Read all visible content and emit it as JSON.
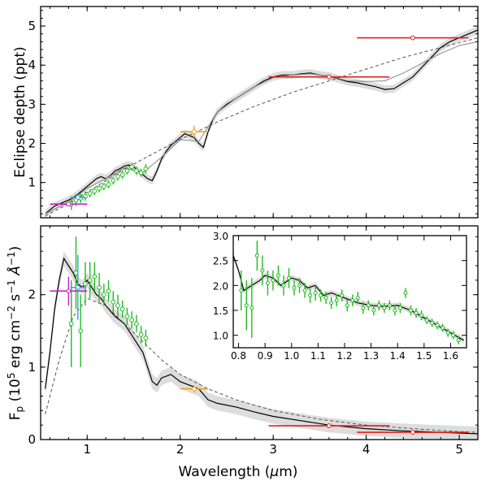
{
  "chart_data": [
    {
      "type": "line",
      "panel": "top",
      "ylabel": "Eclipse depth (ppt)",
      "xlabel": "",
      "xlim": [
        0.5,
        5.2
      ],
      "ylim": [
        0.1,
        5.5
      ],
      "xticks": [
        1,
        2,
        3,
        4,
        5
      ],
      "yticks": [
        1,
        2,
        3,
        4,
        5
      ],
      "tick_labels_y": [
        "1",
        "2",
        "3",
        "4",
        "5"
      ],
      "colors": {
        "model": "#000000",
        "blackbody": "#666666",
        "band": "#cccccc",
        "wfc3": "#22bb22",
        "spitzer": "#e02020",
        "ground_k": "#f0a020",
        "ground_z": "#d020d0",
        "ground_j": "#3aa0e0"
      },
      "series": [
        {
          "style": "model-black",
          "x": [
            0.55,
            0.6,
            0.65,
            0.7,
            0.75,
            0.8,
            0.85,
            0.9,
            0.95,
            1.0,
            1.05,
            1.1,
            1.15,
            1.2,
            1.25,
            1.3,
            1.35,
            1.4,
            1.45,
            1.5,
            1.55,
            1.6,
            1.65,
            1.7,
            1.75,
            1.8,
            1.85,
            1.9,
            1.95,
            2.0,
            2.05,
            2.1,
            2.15,
            2.2,
            2.25,
            2.3,
            2.35,
            2.4,
            2.5,
            2.6,
            2.7,
            2.8,
            2.9,
            3.0,
            3.1,
            3.2,
            3.3,
            3.4,
            3.5,
            3.6,
            3.7,
            3.8,
            3.9,
            4.0,
            4.1,
            4.2,
            4.3,
            4.4,
            4.5,
            4.6,
            4.7,
            4.8,
            4.9,
            5.0,
            5.1,
            5.2
          ],
          "y": [
            0.2,
            0.3,
            0.4,
            0.45,
            0.5,
            0.55,
            0.62,
            0.7,
            0.8,
            0.9,
            1.0,
            1.1,
            1.15,
            1.1,
            1.18,
            1.3,
            1.35,
            1.42,
            1.45,
            1.4,
            1.3,
            1.2,
            1.1,
            1.05,
            1.3,
            1.6,
            1.8,
            1.95,
            2.05,
            2.15,
            2.25,
            2.2,
            2.15,
            2.0,
            1.9,
            2.3,
            2.6,
            2.8,
            3.0,
            3.15,
            3.3,
            3.45,
            3.6,
            3.7,
            3.75,
            3.75,
            3.78,
            3.8,
            3.75,
            3.72,
            3.65,
            3.58,
            3.55,
            3.5,
            3.45,
            3.38,
            3.4,
            3.55,
            3.7,
            3.95,
            4.2,
            4.45,
            4.6,
            4.7,
            4.8,
            4.9
          ]
        },
        {
          "style": "model-gray",
          "x": [
            0.55,
            0.8,
            1.0,
            1.2,
            1.4,
            1.6,
            1.8,
            2.0,
            2.2,
            2.4,
            2.6,
            2.8,
            3.0,
            3.2,
            3.4,
            3.6,
            3.8,
            4.0,
            4.2,
            4.4,
            4.6,
            4.8,
            5.0,
            5.2
          ],
          "y": [
            0.2,
            0.5,
            0.85,
            1.1,
            1.38,
            1.25,
            1.65,
            2.1,
            2.05,
            2.8,
            3.15,
            3.45,
            3.68,
            3.75,
            3.78,
            3.72,
            3.6,
            3.58,
            3.6,
            3.8,
            4.05,
            4.3,
            4.5,
            4.6
          ]
        },
        {
          "style": "blackbody-dashed",
          "x": [
            0.55,
            0.8,
            1.0,
            1.2,
            1.4,
            1.6,
            1.8,
            2.0,
            2.4,
            2.8,
            3.2,
            3.6,
            4.0,
            4.4,
            4.8,
            5.2
          ],
          "y": [
            0.15,
            0.45,
            0.75,
            1.05,
            1.35,
            1.6,
            1.85,
            2.1,
            2.55,
            2.95,
            3.3,
            3.6,
            3.9,
            4.2,
            4.45,
            4.7
          ]
        }
      ],
      "points": [
        {
          "group": "wfc3",
          "x": [
            0.83,
            0.88,
            0.93,
            0.98,
            1.03,
            1.08,
            1.13,
            1.18,
            1.23,
            1.28,
            1.33,
            1.38,
            1.43,
            1.48,
            1.53,
            1.58,
            1.63
          ],
          "y": [
            0.45,
            0.55,
            0.6,
            0.65,
            0.72,
            0.78,
            0.85,
            0.9,
            0.95,
            1.05,
            1.15,
            1.2,
            1.3,
            1.4,
            1.3,
            1.25,
            1.35
          ],
          "yerr": [
            0.15,
            0.15,
            0.12,
            0.12,
            0.1,
            0.1,
            0.1,
            0.1,
            0.1,
            0.1,
            0.1,
            0.1,
            0.1,
            0.1,
            0.1,
            0.1,
            0.12
          ]
        },
        {
          "group": "spitzer",
          "x": [
            3.6,
            4.5
          ],
          "y": [
            3.7,
            4.7
          ],
          "xerr": [
            0.65,
            0.6
          ],
          "yerr": [
            0.05,
            0.05
          ]
        },
        {
          "group": "ground_k",
          "x": [
            2.15
          ],
          "y": [
            2.3
          ],
          "xerr": [
            0.15
          ],
          "yerr": [
            0.15
          ]
        },
        {
          "group": "ground_z",
          "x": [
            0.8
          ],
          "y": [
            0.45
          ],
          "xerr": [
            0.2
          ],
          "yerr": [
            0.05
          ]
        },
        {
          "group": "ground_j",
          "x": [
            0.9
          ],
          "y": [
            0.62
          ],
          "xerr": [
            0.08
          ],
          "yerr": [
            0.08
          ]
        }
      ]
    },
    {
      "type": "line",
      "panel": "bottom",
      "xlabel": "Wavelength (μm)",
      "ylabel": "F_p (10^5 erg cm^-2 s^-1 Å^-1)",
      "xlim": [
        0.5,
        5.2
      ],
      "ylim": [
        0,
        2.95
      ],
      "xticks": [
        1,
        2,
        3,
        4,
        5
      ],
      "yticks": [
        0,
        1,
        2
      ],
      "tick_labels_x": [
        "1",
        "2",
        "3",
        "4",
        "5"
      ],
      "tick_labels_y": [
        "0",
        "1",
        "2"
      ],
      "series": [
        {
          "style": "model-black",
          "x": [
            0.55,
            0.6,
            0.65,
            0.7,
            0.75,
            0.8,
            0.85,
            0.9,
            0.95,
            1.0,
            1.05,
            1.1,
            1.15,
            1.2,
            1.3,
            1.4,
            1.5,
            1.6,
            1.65,
            1.7,
            1.75,
            1.8,
            1.9,
            2.0,
            2.1,
            2.2,
            2.3,
            2.4,
            2.6,
            2.8,
            3.0,
            3.3,
            3.6,
            4.0,
            4.4,
            4.8,
            5.2
          ],
          "y": [
            0.7,
            1.2,
            1.8,
            2.2,
            2.5,
            2.4,
            2.3,
            2.15,
            2.1,
            2.2,
            2.1,
            2.0,
            1.95,
            1.85,
            1.7,
            1.6,
            1.4,
            1.2,
            1.0,
            0.8,
            0.75,
            0.85,
            0.9,
            0.8,
            0.75,
            0.7,
            0.55,
            0.5,
            0.45,
            0.38,
            0.32,
            0.26,
            0.2,
            0.15,
            0.12,
            0.1,
            0.08
          ]
        },
        {
          "style": "blackbody-dashed",
          "x": [
            0.55,
            0.7,
            0.85,
            1.0,
            1.2,
            1.4,
            1.6,
            1.8,
            2.0,
            2.3,
            2.6,
            3.0,
            3.5,
            4.0,
            4.5,
            5.0,
            5.2
          ],
          "y": [
            0.35,
            1.1,
            1.7,
            1.95,
            1.85,
            1.6,
            1.35,
            1.1,
            0.9,
            0.7,
            0.55,
            0.4,
            0.28,
            0.2,
            0.15,
            0.11,
            0.1
          ]
        }
      ],
      "points": [
        {
          "group": "wfc3",
          "x": [
            0.83,
            0.88,
            0.93,
            0.98,
            1.03,
            1.08,
            1.13,
            1.18,
            1.23,
            1.28,
            1.33,
            1.38,
            1.43,
            1.48,
            1.53,
            1.58,
            1.63
          ],
          "y": [
            1.6,
            2.3,
            1.5,
            2.15,
            2.2,
            2.25,
            2.1,
            2.0,
            2.05,
            1.9,
            1.85,
            1.8,
            1.7,
            1.65,
            1.6,
            1.45,
            1.4
          ],
          "yerr": [
            0.6,
            0.5,
            0.5,
            0.3,
            0.25,
            0.2,
            0.2,
            0.15,
            0.15,
            0.15,
            0.15,
            0.12,
            0.12,
            0.12,
            0.12,
            0.12,
            0.12
          ]
        },
        {
          "group": "spitzer",
          "x": [
            3.6,
            4.5
          ],
          "y": [
            0.19,
            0.1
          ],
          "xerr": [
            0.65,
            0.6
          ],
          "yerr": [
            0.01,
            0.01
          ]
        },
        {
          "group": "ground_k",
          "x": [
            2.15
          ],
          "y": [
            0.7
          ],
          "xerr": [
            0.15
          ],
          "yerr": [
            0.05
          ]
        },
        {
          "group": "ground_z",
          "x": [
            0.8
          ],
          "y": [
            2.05
          ],
          "xerr": [
            0.2
          ],
          "yerr": [
            0.2
          ]
        },
        {
          "group": "ground_j",
          "x": [
            0.9
          ],
          "y": [
            2.1
          ],
          "xerr": [
            0.08
          ],
          "yerr": [
            0.45
          ]
        }
      ]
    },
    {
      "type": "line",
      "panel": "inset",
      "xlim": [
        0.78,
        1.66
      ],
      "ylim": [
        0.75,
        3.0
      ],
      "xticks": [
        0.8,
        0.9,
        1.0,
        1.1,
        1.2,
        1.3,
        1.4,
        1.5,
        1.6
      ],
      "yticks": [
        1.0,
        1.5,
        2.0,
        2.5,
        3.0
      ],
      "tick_labels_x": [
        "0.8",
        "0.9",
        "1.0",
        "1.1",
        "1.2",
        "1.3",
        "1.4",
        "1.5",
        "1.6"
      ],
      "tick_labels_y": [
        "1.0",
        "1.5",
        "2.0",
        "2.5",
        "3.0"
      ],
      "series": [
        {
          "style": "model-black",
          "x": [
            0.78,
            0.8,
            0.82,
            0.85,
            0.88,
            0.9,
            0.93,
            0.96,
            1.0,
            1.03,
            1.06,
            1.09,
            1.12,
            1.15,
            1.2,
            1.25,
            1.3,
            1.35,
            1.4,
            1.45,
            1.5,
            1.55,
            1.6,
            1.65
          ],
          "y": [
            2.6,
            2.3,
            1.9,
            2.0,
            2.1,
            2.2,
            2.15,
            2.0,
            2.15,
            2.1,
            1.95,
            2.0,
            1.8,
            1.85,
            1.75,
            1.65,
            1.6,
            1.58,
            1.6,
            1.5,
            1.35,
            1.2,
            1.05,
            0.9
          ]
        }
      ],
      "points": [
        {
          "group": "wfc3",
          "x": [
            0.81,
            0.83,
            0.85,
            0.87,
            0.89,
            0.91,
            0.93,
            0.95,
            0.97,
            0.99,
            1.01,
            1.03,
            1.05,
            1.07,
            1.09,
            1.11,
            1.13,
            1.15,
            1.17,
            1.19,
            1.21,
            1.23,
            1.25,
            1.27,
            1.29,
            1.31,
            1.33,
            1.35,
            1.37,
            1.39,
            1.41,
            1.43,
            1.45,
            1.47,
            1.49,
            1.51,
            1.53,
            1.55,
            1.57,
            1.59,
            1.61,
            1.63
          ],
          "y": [
            1.9,
            1.6,
            1.55,
            2.6,
            2.3,
            2.05,
            2.1,
            2.2,
            2.0,
            2.15,
            1.95,
            2.0,
            1.9,
            1.8,
            1.85,
            1.8,
            1.75,
            1.65,
            1.7,
            1.8,
            1.6,
            1.7,
            1.75,
            1.55,
            1.6,
            1.5,
            1.6,
            1.55,
            1.6,
            1.5,
            1.55,
            1.85,
            1.5,
            1.45,
            1.4,
            1.3,
            1.25,
            1.2,
            1.15,
            1.05,
            1.0,
            0.9
          ],
          "yerr": [
            0.4,
            0.5,
            0.6,
            0.3,
            0.3,
            0.25,
            0.2,
            0.2,
            0.2,
            0.2,
            0.15,
            0.15,
            0.15,
            0.15,
            0.15,
            0.12,
            0.12,
            0.12,
            0.12,
            0.12,
            0.12,
            0.12,
            0.12,
            0.12,
            0.1,
            0.1,
            0.1,
            0.1,
            0.1,
            0.1,
            0.1,
            0.1,
            0.1,
            0.1,
            0.1,
            0.08,
            0.08,
            0.08,
            0.08,
            0.08,
            0.08,
            0.08
          ]
        }
      ]
    }
  ]
}
